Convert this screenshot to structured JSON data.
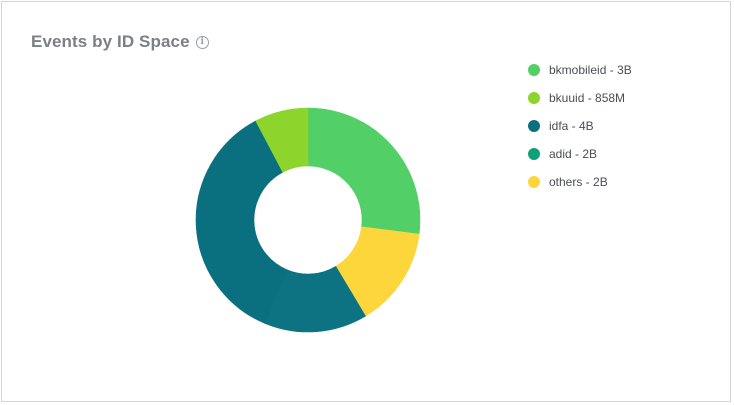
{
  "card": {
    "title": "Events by ID Space",
    "info_icon": "info-icon"
  },
  "chart_data": {
    "type": "pie",
    "variant": "donut",
    "title": "Events by ID Space",
    "legend_position": "top-right",
    "slices": [
      {
        "label": "bkmobileid - 3B",
        "name": "bkmobileid",
        "display_value": "3B",
        "value": 3.0,
        "color": "#52cf66"
      },
      {
        "label": "others - 2B",
        "name": "others",
        "display_value": "2B",
        "value": 1.6,
        "color": "#fdd63b"
      },
      {
        "label": "adid - 2B",
        "name": "adid",
        "display_value": "2B",
        "value": 1.65,
        "color": "#0d7382"
      },
      {
        "label": "idfa - 4B",
        "name": "idfa",
        "display_value": "4B",
        "value": 4.0,
        "color": "#0a7080"
      },
      {
        "label": "bkuuid - 858M",
        "name": "bkuuid",
        "display_value": "858M",
        "value": 0.858,
        "color": "#8dd42d"
      }
    ],
    "legend": [
      {
        "label": "bkmobileid - 3B",
        "color": "#52cf66"
      },
      {
        "label": "bkuuid - 858M",
        "color": "#8dd42d"
      },
      {
        "label": "idfa - 4B",
        "color": "#0a7080"
      },
      {
        "label": "adid - 2B",
        "color": "#10a079"
      },
      {
        "label": "others - 2B",
        "color": "#fdd63b"
      }
    ]
  }
}
